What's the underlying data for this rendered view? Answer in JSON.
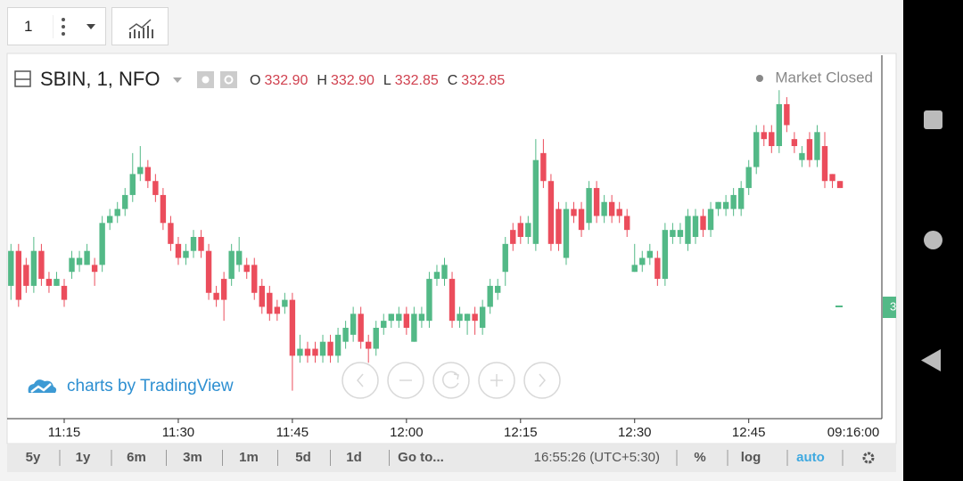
{
  "toolbar": {
    "interval": "1"
  },
  "legend": {
    "symbol": "SBIN, 1, NFO",
    "items": [
      {
        "key": "O",
        "value": "332.90"
      },
      {
        "key": "H",
        "value": "332.90"
      },
      {
        "key": "L",
        "value": "332.85"
      },
      {
        "key": "C",
        "value": "332.85"
      }
    ],
    "status": "Market Closed"
  },
  "watermark": "charts by TradingView",
  "price_label": "3",
  "crosshair_time": "09:16:00",
  "bottom_bar": {
    "ranges": [
      "5y",
      "1y",
      "6m",
      "3m",
      "1m",
      "5d",
      "1d",
      "Go to..."
    ],
    "clock": "16:55:26 (UTC+5:30)",
    "options": [
      "%",
      "log",
      "auto"
    ]
  },
  "chart_data": {
    "type": "candlestick",
    "up_color": "#53b987",
    "down_color": "#eb4d5c",
    "ylim": [
      331.2,
      333.8
    ],
    "xticks": [
      "11:15",
      "11:30",
      "11:45",
      "12:00",
      "12:15",
      "12:30",
      "12:45"
    ],
    "categories": [
      "11:08",
      "11:09",
      "11:10",
      "11:11",
      "11:12",
      "11:13",
      "11:14",
      "11:15",
      "11:16",
      "11:17",
      "11:18",
      "11:19",
      "11:20",
      "11:21",
      "11:22",
      "11:23",
      "11:24",
      "11:25",
      "11:26",
      "11:27",
      "11:28",
      "11:29",
      "11:30",
      "11:31",
      "11:32",
      "11:33",
      "11:34",
      "11:35",
      "11:36",
      "11:37",
      "11:38",
      "11:39",
      "11:40",
      "11:41",
      "11:42",
      "11:43",
      "11:44",
      "11:45",
      "11:46",
      "11:47",
      "11:48",
      "11:49",
      "11:50",
      "11:51",
      "11:52",
      "11:53",
      "11:54",
      "11:55",
      "11:56",
      "11:57",
      "11:58",
      "11:59",
      "12:00",
      "12:01",
      "12:02",
      "12:03",
      "12:04",
      "12:05",
      "12:06",
      "12:07",
      "12:08",
      "12:09",
      "12:10",
      "12:11",
      "12:12",
      "12:13",
      "12:14",
      "12:15",
      "12:16",
      "12:17",
      "12:18",
      "12:19",
      "12:20",
      "12:21",
      "12:22",
      "12:23",
      "12:24",
      "12:25",
      "12:26",
      "12:27",
      "12:28",
      "12:29",
      "12:30",
      "12:31",
      "12:32",
      "12:33",
      "12:34",
      "12:35",
      "12:36",
      "12:37",
      "12:38",
      "12:39",
      "12:40",
      "12:41",
      "12:42",
      "12:43",
      "12:44",
      "12:45",
      "12:46",
      "12:47",
      "12:48",
      "12:49",
      "12:50",
      "12:51",
      "12:52",
      "12:53",
      "12:54",
      "12:55",
      "12:56",
      "12:57"
    ],
    "open": [
      332.15,
      332.4,
      332.3,
      332.15,
      332.4,
      332.2,
      332.15,
      332.15,
      332.25,
      332.3,
      332.3,
      332.3,
      332.3,
      332.6,
      332.65,
      332.7,
      332.8,
      332.95,
      333.0,
      332.9,
      332.8,
      332.6,
      332.45,
      332.35,
      332.4,
      332.5,
      332.4,
      332.1,
      332.2,
      332.2,
      332.3,
      332.3,
      332.3,
      332.15,
      332.1,
      332.0,
      332.0,
      332.05,
      331.65,
      331.7,
      331.7,
      331.65,
      331.75,
      331.65,
      331.75,
      331.8,
      331.95,
      331.75,
      331.7,
      331.85,
      331.9,
      331.9,
      331.95,
      331.75,
      331.9,
      331.9,
      332.2,
      332.2,
      332.2,
      331.9,
      331.9,
      331.95,
      331.85,
      332.0,
      332.1,
      332.25,
      332.55,
      332.6,
      332.5,
      332.45,
      333.1,
      332.9,
      332.7,
      332.35,
      332.7,
      332.7,
      332.6,
      332.85,
      332.65,
      332.75,
      332.7,
      332.65,
      332.25,
      332.3,
      332.35,
      332.35,
      332.2,
      332.5,
      332.5,
      332.45,
      332.5,
      332.65,
      332.55,
      332.7,
      332.7,
      332.7,
      332.7,
      332.85,
      333.0,
      333.25,
      333.25,
      333.15,
      333.45,
      333.2,
      333.05,
      333.2,
      333.05,
      333.15,
      332.95,
      332.9
    ],
    "high": [
      332.45,
      332.45,
      332.35,
      332.5,
      332.45,
      332.25,
      332.25,
      332.2,
      332.4,
      332.4,
      332.45,
      332.35,
      332.65,
      332.7,
      332.75,
      332.85,
      333.1,
      333.15,
      333.05,
      332.95,
      332.85,
      332.65,
      332.5,
      332.45,
      332.55,
      332.55,
      332.45,
      332.15,
      332.25,
      332.45,
      332.5,
      332.35,
      332.35,
      332.2,
      332.15,
      332.05,
      332.1,
      332.1,
      331.8,
      331.75,
      331.75,
      331.8,
      331.8,
      331.85,
      331.9,
      332.0,
      332.0,
      331.8,
      331.9,
      331.95,
      331.95,
      332.0,
      332.0,
      332.0,
      332.0,
      332.25,
      332.3,
      332.35,
      332.25,
      332.0,
      331.95,
      332.0,
      332.05,
      332.2,
      332.2,
      332.5,
      332.6,
      332.65,
      332.65,
      333.2,
      333.2,
      332.95,
      332.75,
      332.75,
      332.75,
      332.75,
      332.9,
      332.9,
      332.8,
      332.8,
      332.75,
      332.7,
      332.45,
      332.4,
      332.45,
      332.4,
      332.6,
      332.6,
      332.6,
      332.7,
      332.7,
      332.7,
      332.75,
      332.75,
      332.8,
      332.85,
      332.9,
      333.05,
      333.3,
      333.3,
      333.3,
      333.55,
      333.5,
      333.25,
      333.15,
      333.25,
      333.3,
      333.25,
      332.95,
      332.9
    ],
    "low": [
      332.05,
      332.0,
      332.1,
      332.1,
      332.15,
      332.1,
      332.15,
      332.0,
      332.2,
      332.25,
      332.3,
      332.15,
      332.25,
      332.55,
      332.6,
      332.65,
      332.75,
      332.9,
      332.85,
      332.75,
      332.55,
      332.4,
      332.3,
      332.3,
      332.35,
      332.35,
      332.05,
      332.0,
      331.9,
      332.15,
      332.25,
      332.2,
      332.05,
      331.95,
      331.9,
      331.9,
      331.95,
      331.4,
      331.6,
      331.6,
      331.6,
      331.6,
      331.6,
      331.6,
      331.7,
      331.75,
      331.7,
      331.6,
      331.65,
      331.8,
      331.85,
      331.85,
      331.8,
      331.75,
      331.85,
      331.85,
      332.15,
      332.15,
      331.85,
      331.85,
      331.8,
      331.8,
      331.8,
      331.95,
      332.05,
      332.15,
      332.4,
      332.45,
      332.45,
      332.4,
      332.85,
      332.4,
      332.4,
      332.3,
      332.6,
      332.5,
      332.55,
      332.6,
      332.6,
      332.6,
      332.6,
      332.5,
      332.25,
      332.25,
      332.3,
      332.15,
      332.15,
      332.45,
      332.45,
      332.4,
      332.45,
      332.5,
      332.5,
      332.65,
      332.65,
      332.65,
      332.65,
      332.8,
      332.95,
      333.15,
      333.1,
      333.1,
      333.25,
      333.1,
      333.0,
      333.0,
      333.0,
      332.85,
      332.85,
      332.85
    ],
    "close": [
      332.4,
      332.05,
      332.15,
      332.4,
      332.2,
      332.15,
      332.2,
      332.05,
      332.35,
      332.35,
      332.4,
      332.25,
      332.6,
      332.65,
      332.7,
      332.8,
      332.95,
      333.0,
      332.9,
      332.8,
      332.6,
      332.45,
      332.35,
      332.4,
      332.5,
      332.4,
      332.1,
      332.05,
      332.05,
      332.4,
      332.4,
      332.25,
      332.1,
      332.0,
      331.95,
      331.95,
      332.05,
      331.65,
      331.7,
      331.65,
      331.65,
      331.75,
      331.65,
      331.8,
      331.85,
      331.95,
      331.75,
      331.7,
      331.85,
      331.9,
      331.95,
      331.95,
      331.85,
      331.95,
      331.95,
      332.2,
      332.25,
      332.3,
      331.9,
      331.95,
      331.95,
      331.9,
      332.0,
      332.15,
      332.15,
      332.45,
      332.45,
      332.5,
      332.6,
      333.05,
      332.9,
      332.45,
      332.45,
      332.7,
      332.65,
      332.55,
      332.85,
      332.65,
      332.75,
      332.65,
      332.65,
      332.55,
      332.3,
      332.35,
      332.4,
      332.2,
      332.55,
      332.55,
      332.55,
      332.65,
      332.65,
      332.55,
      332.7,
      332.75,
      332.75,
      332.8,
      332.85,
      333.0,
      333.25,
      333.2,
      333.15,
      333.45,
      333.3,
      333.15,
      333.1,
      333.05,
      333.25,
      332.9,
      332.9,
      332.85
    ]
  }
}
